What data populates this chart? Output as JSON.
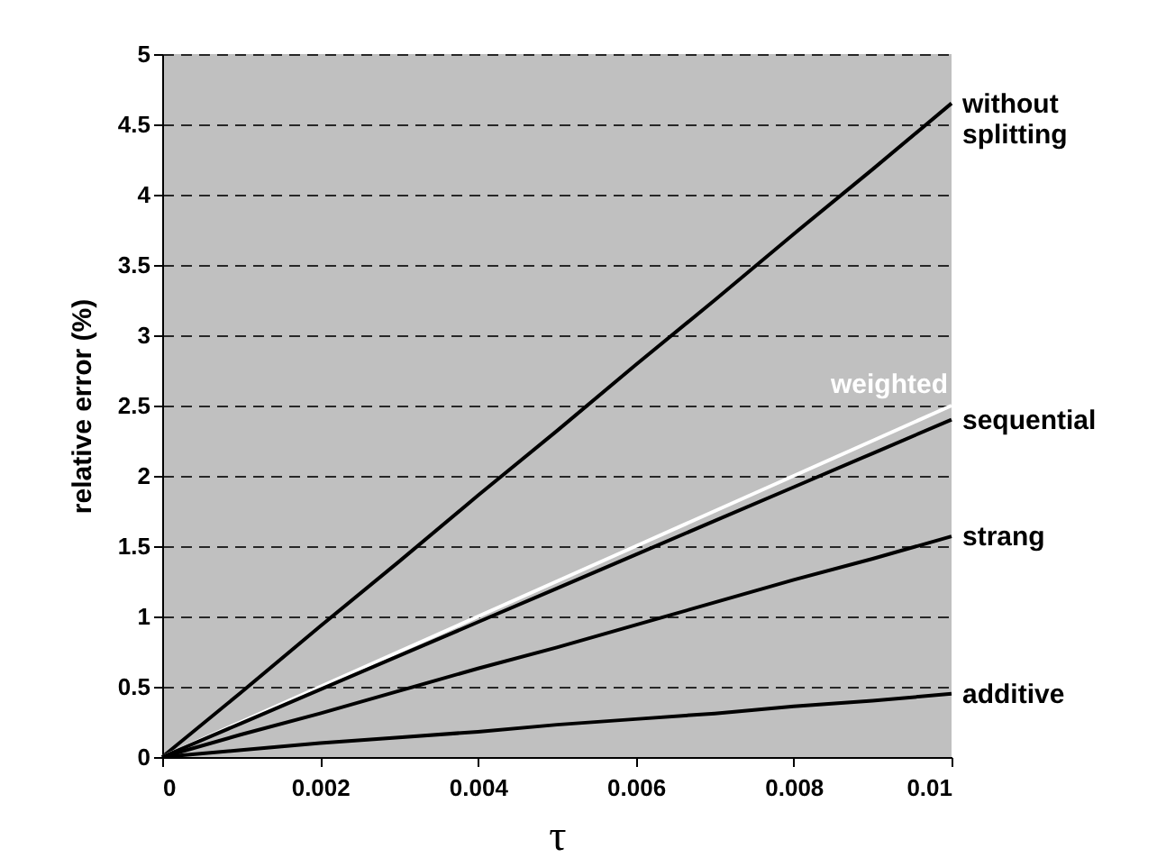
{
  "chart_data": {
    "type": "line",
    "xlabel": "τ",
    "ylabel": "relative error (%)",
    "x": [
      0,
      0.001,
      0.002,
      0.003,
      0.004,
      0.005,
      0.006,
      0.007,
      0.008,
      0.009,
      0.01
    ],
    "series": [
      {
        "name": "without splitting",
        "color": "#000000",
        "values": [
          0,
          0.46,
          0.93,
          1.39,
          1.86,
          2.32,
          2.79,
          3.25,
          3.72,
          4.18,
          4.65
        ]
      },
      {
        "name": "weighted",
        "color": "#ffffff",
        "values": [
          0,
          0.25,
          0.5,
          0.75,
          1.0,
          1.25,
          1.5,
          1.75,
          2.0,
          2.25,
          2.5
        ]
      },
      {
        "name": "sequential",
        "color": "#000000",
        "values": [
          0,
          0.24,
          0.48,
          0.72,
          0.96,
          1.2,
          1.44,
          1.68,
          1.92,
          2.16,
          2.4
        ]
      },
      {
        "name": "strang",
        "color": "#000000",
        "values": [
          0,
          0.16,
          0.31,
          0.47,
          0.63,
          0.78,
          0.94,
          1.1,
          1.26,
          1.41,
          1.57
        ]
      },
      {
        "name": "additive",
        "color": "#000000",
        "values": [
          0,
          0.05,
          0.1,
          0.14,
          0.18,
          0.23,
          0.27,
          0.31,
          0.36,
          0.4,
          0.45
        ]
      }
    ],
    "xlim": [
      0,
      0.01
    ],
    "xticks": [
      0,
      0.002,
      0.004,
      0.006,
      0.008,
      0.01
    ],
    "ylim": [
      0,
      5
    ],
    "yticks": [
      0,
      0.5,
      1,
      1.5,
      2,
      2.5,
      3,
      3.5,
      4,
      4.5,
      5
    ],
    "grid": "y",
    "legend": false,
    "marker": "none",
    "line_style": "solid"
  }
}
